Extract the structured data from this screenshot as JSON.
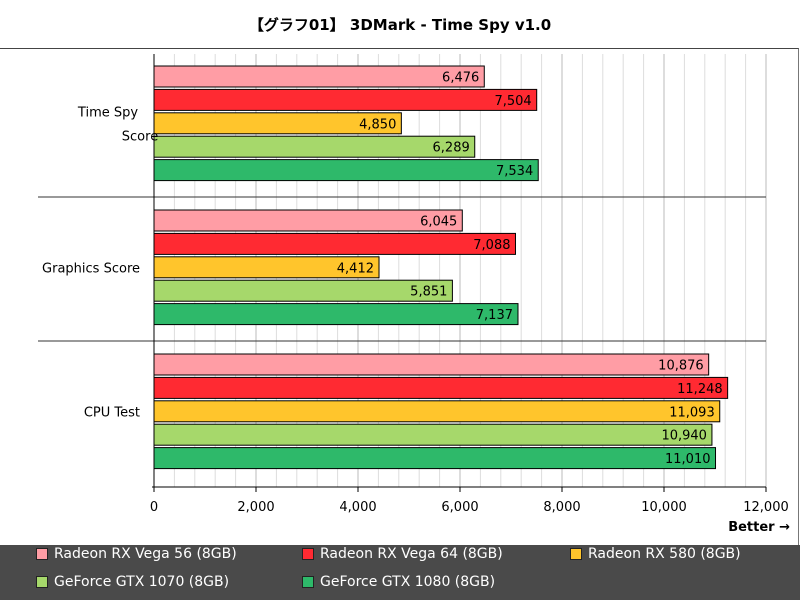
{
  "chart_data": {
    "type": "bar",
    "orientation": "horizontal",
    "title": "【グラフ01】 3DMark - Time Spy v1.0",
    "categories": [
      "Time Spy Score",
      "Graphics Score",
      "CPU Test"
    ],
    "series": [
      {
        "name": "Radeon RX Vega 56 (8GB)",
        "color": "#ff9da5",
        "values": [
          6476,
          6045,
          10876
        ],
        "labels": [
          "6,476",
          "6,045",
          "10,876"
        ]
      },
      {
        "name": "Radeon RX Vega 64 (8GB)",
        "color": "#ff2a32",
        "values": [
          7504,
          7088,
          11248
        ],
        "labels": [
          "7,504",
          "7,088",
          "11,248"
        ]
      },
      {
        "name": "Radeon RX 580 (8GB)",
        "color": "#ffc52c",
        "values": [
          4850,
          4412,
          11093
        ],
        "labels": [
          "4,850",
          "4,412",
          "11,093"
        ]
      },
      {
        "name": "GeForce GTX 1070 (8GB)",
        "color": "#a6d86b",
        "values": [
          6289,
          5851,
          10940
        ],
        "labels": [
          "6,289",
          "5,851",
          "10,940"
        ]
      },
      {
        "name": "GeForce GTX 1080 (8GB)",
        "color": "#2eb96a",
        "values": [
          7534,
          7137,
          11010
        ],
        "labels": [
          "7,534",
          "7,137",
          "11,010"
        ]
      }
    ],
    "xlim": [
      0,
      12000
    ],
    "xticks": [
      0,
      2000,
      4000,
      6000,
      8000,
      10000,
      12000
    ],
    "xtick_labels": [
      "0",
      "2,000",
      "4,000",
      "6,000",
      "8,000",
      "10,000",
      "12,000"
    ],
    "grid": true,
    "legend_position": "bottom",
    "annotation": "Better →"
  },
  "category_label_lines": [
    [
      "Time Spy",
      "Score"
    ],
    [
      "Graphics Score"
    ],
    [
      "CPU Test"
    ]
  ],
  "legend_bg": "#4a4a4a"
}
